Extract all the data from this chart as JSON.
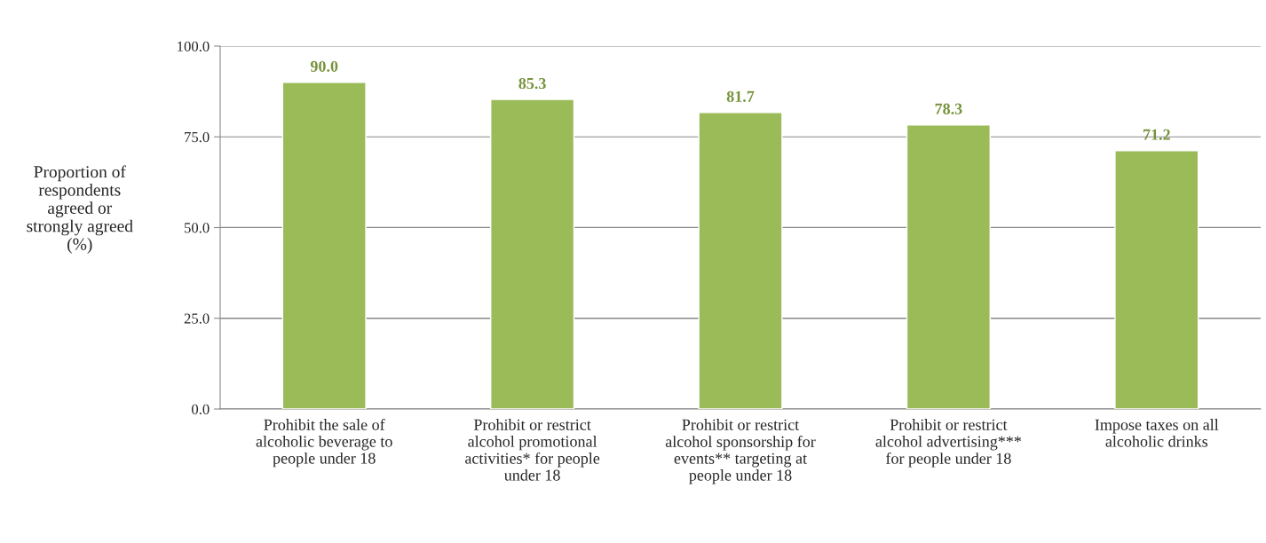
{
  "chart_data": {
    "type": "bar",
    "ylabel": "Proportion of\nrespondents\nagreed or\nstrongly agreed\n(%)",
    "categories": [
      "Prohibit the sale of\nalcoholic beverage to\npeople under 18",
      "Prohibit or restrict\nalcohol promotional\nactivities* for people\nunder 18",
      "Prohibit or restrict\nalcohol sponsorship for\nevents** targeting at\npeople under 18",
      "Prohibit or restrict\nalcohol advertising***\nfor people under 18",
      "Impose taxes on all\nalcoholic drinks"
    ],
    "values": [
      90.0,
      85.3,
      81.7,
      78.3,
      71.2
    ],
    "value_labels": [
      "90.0",
      "85.3",
      "81.7",
      "78.3",
      "71.2"
    ],
    "color": "#9bbb59",
    "ylim": [
      0,
      100
    ],
    "yticks": [
      {
        "value": 0,
        "label": "0.0"
      },
      {
        "value": 25,
        "label": "25.0"
      },
      {
        "value": 50,
        "label": "50.0"
      },
      {
        "value": 75,
        "label": "75.0"
      },
      {
        "value": 100,
        "label": "100.0"
      }
    ],
    "grid": "y"
  }
}
